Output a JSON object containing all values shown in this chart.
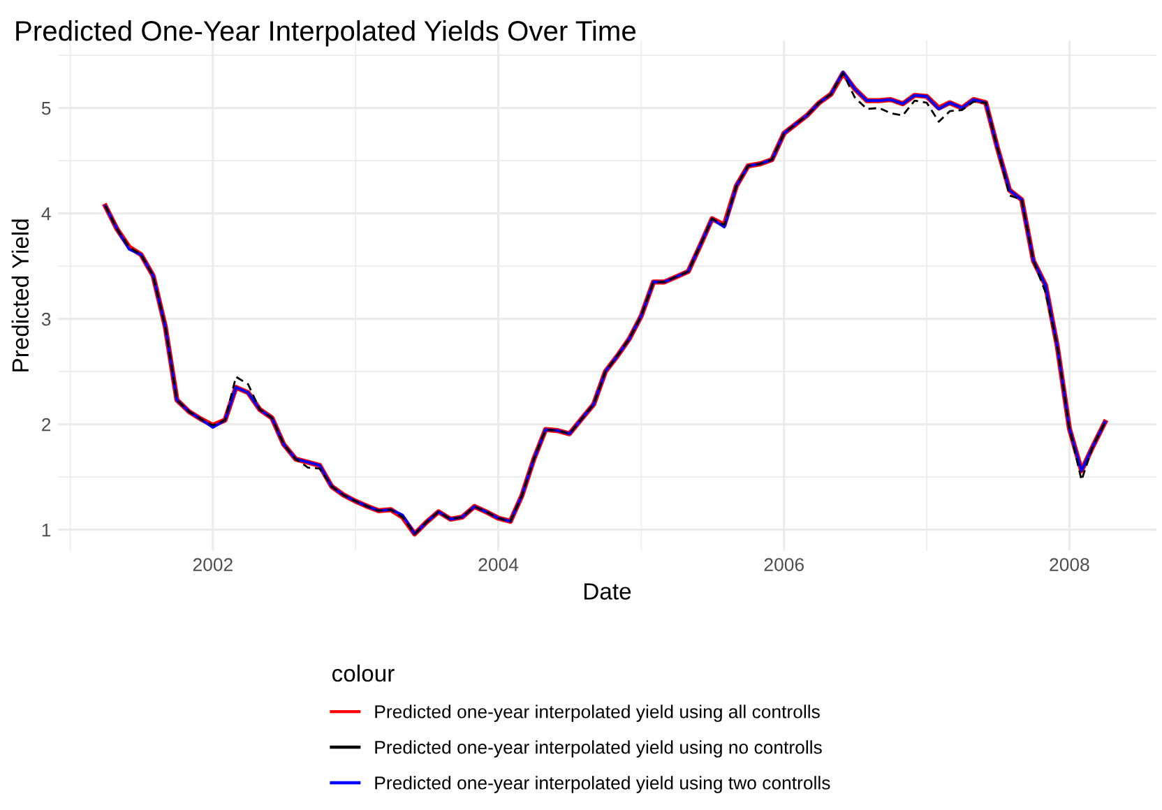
{
  "chart_data": {
    "type": "line",
    "title": "Predicted One-Year Interpolated Yields Over Time",
    "xlabel": "Date",
    "ylabel": "Predicted Yield",
    "legend_title": "colour",
    "legend": "bottom",
    "grid": true,
    "marker": "none",
    "xlim": [
      "2000-12-01",
      "2008-08-10"
    ],
    "ylim": [
      0.8,
      5.64
    ],
    "xticks": [
      {
        "value": "2001",
        "label": null
      },
      "2002",
      {
        "value": "2003",
        "label": null
      },
      "2004",
      {
        "value": "2005",
        "label": null
      },
      "2006",
      {
        "value": "2007",
        "label": null
      },
      "2008"
    ],
    "yticks": [
      1,
      {
        "value": 1.5,
        "label": null
      },
      2,
      {
        "value": 2.5,
        "label": null
      },
      3,
      {
        "value": 3.5,
        "label": null
      },
      4,
      {
        "value": 4.5,
        "label": null
      },
      5,
      {
        "value": 5.5,
        "label": null
      }
    ],
    "x": [
      "2001-04",
      "2001-05",
      "2001-06",
      "2001-07",
      "2001-08",
      "2001-09",
      "2001-10",
      "2001-11",
      "2001-12",
      "2002-01",
      "2002-02",
      "2002-03",
      "2002-04",
      "2002-05",
      "2002-06",
      "2002-07",
      "2002-08",
      "2002-09",
      "2002-10",
      "2002-11",
      "2002-12",
      "2003-01",
      "2003-02",
      "2003-03",
      "2003-04",
      "2003-05",
      "2003-06",
      "2003-07",
      "2003-08",
      "2003-09",
      "2003-10",
      "2003-11",
      "2003-12",
      "2004-01",
      "2004-02",
      "2004-03",
      "2004-04",
      "2004-05",
      "2004-06",
      "2004-07",
      "2004-08",
      "2004-09",
      "2004-10",
      "2004-11",
      "2004-12",
      "2005-01",
      "2005-02",
      "2005-03",
      "2005-04",
      "2005-05",
      "2005-06",
      "2005-07",
      "2005-08",
      "2005-09",
      "2005-10",
      "2005-11",
      "2005-12",
      "2006-01",
      "2006-02",
      "2006-03",
      "2006-04",
      "2006-05",
      "2006-06",
      "2006-07",
      "2006-08",
      "2006-09",
      "2006-10",
      "2006-11",
      "2006-12",
      "2007-01",
      "2007-02",
      "2007-03",
      "2007-04",
      "2007-05",
      "2007-06",
      "2007-07",
      "2007-08",
      "2007-09",
      "2007-10",
      "2007-11",
      "2007-12",
      "2008-01",
      "2008-02",
      "2008-03",
      "2008-04"
    ],
    "series": [
      {
        "name": "Predicted one-year interpolated yield using all controlls",
        "color": "#ff0000",
        "line_style": "solid",
        "values": [
          4.07,
          3.85,
          3.68,
          3.61,
          3.41,
          2.93,
          2.23,
          2.12,
          2.05,
          1.99,
          2.04,
          2.35,
          2.3,
          2.14,
          2.06,
          1.81,
          1.67,
          1.64,
          1.61,
          1.41,
          1.33,
          1.27,
          1.22,
          1.18,
          1.19,
          1.12,
          0.96,
          1.07,
          1.17,
          1.1,
          1.12,
          1.22,
          1.17,
          1.11,
          1.08,
          1.32,
          1.67,
          1.95,
          1.94,
          1.91,
          2.05,
          2.19,
          2.5,
          2.65,
          2.81,
          3.03,
          3.35,
          3.35,
          3.4,
          3.45,
          3.7,
          3.95,
          3.89,
          4.26,
          4.45,
          4.47,
          4.51,
          4.76,
          4.85,
          4.93,
          5.05,
          5.13,
          5.33,
          5.18,
          5.07,
          5.07,
          5.08,
          5.04,
          5.12,
          5.11,
          5.0,
          5.05,
          5.0,
          5.08,
          5.05,
          4.62,
          4.22,
          4.13,
          3.55,
          3.32,
          2.74,
          1.96,
          1.56,
          1.79,
          2.02
        ]
      },
      {
        "name": "Predicted one-year interpolated yield using no controlls",
        "color": "#000000",
        "line_style": "dashed",
        "values": [
          4.07,
          3.85,
          3.68,
          3.61,
          3.41,
          2.93,
          2.23,
          2.12,
          2.05,
          1.99,
          2.04,
          2.45,
          2.38,
          2.14,
          2.06,
          1.81,
          1.67,
          1.59,
          1.58,
          1.41,
          1.33,
          1.27,
          1.22,
          1.18,
          1.19,
          1.12,
          0.96,
          1.07,
          1.17,
          1.1,
          1.12,
          1.22,
          1.17,
          1.11,
          1.08,
          1.32,
          1.67,
          1.95,
          1.94,
          1.91,
          2.05,
          2.19,
          2.5,
          2.65,
          2.81,
          3.03,
          3.35,
          3.35,
          3.4,
          3.45,
          3.7,
          3.95,
          3.89,
          4.26,
          4.45,
          4.47,
          4.51,
          4.76,
          4.85,
          4.93,
          5.05,
          5.13,
          5.33,
          5.1,
          4.99,
          5.0,
          4.95,
          4.93,
          5.07,
          5.05,
          4.87,
          4.97,
          4.98,
          5.06,
          5.05,
          4.62,
          4.17,
          4.13,
          3.55,
          3.25,
          2.74,
          1.96,
          1.47,
          1.79,
          2.02
        ]
      },
      {
        "name": "Predicted one-year interpolated yield using two controlls",
        "color": "#0000ff",
        "line_style": "solid",
        "values": [
          4.07,
          3.85,
          3.66,
          3.61,
          3.41,
          2.93,
          2.23,
          2.12,
          2.05,
          1.97,
          2.04,
          2.35,
          2.3,
          2.14,
          2.06,
          1.81,
          1.67,
          1.64,
          1.61,
          1.41,
          1.33,
          1.27,
          1.22,
          1.18,
          1.19,
          1.14,
          0.96,
          1.07,
          1.17,
          1.1,
          1.12,
          1.22,
          1.17,
          1.11,
          1.08,
          1.32,
          1.67,
          1.95,
          1.94,
          1.91,
          2.05,
          2.19,
          2.5,
          2.65,
          2.81,
          3.03,
          3.35,
          3.35,
          3.4,
          3.45,
          3.7,
          3.95,
          3.87,
          4.26,
          4.45,
          4.47,
          4.51,
          4.76,
          4.85,
          4.93,
          5.05,
          5.13,
          5.34,
          5.18,
          5.07,
          5.07,
          5.08,
          5.04,
          5.12,
          5.11,
          4.99,
          5.05,
          5.0,
          5.08,
          5.05,
          4.62,
          4.22,
          4.13,
          3.55,
          3.32,
          2.74,
          1.96,
          1.56,
          1.79,
          2.02
        ]
      }
    ]
  }
}
